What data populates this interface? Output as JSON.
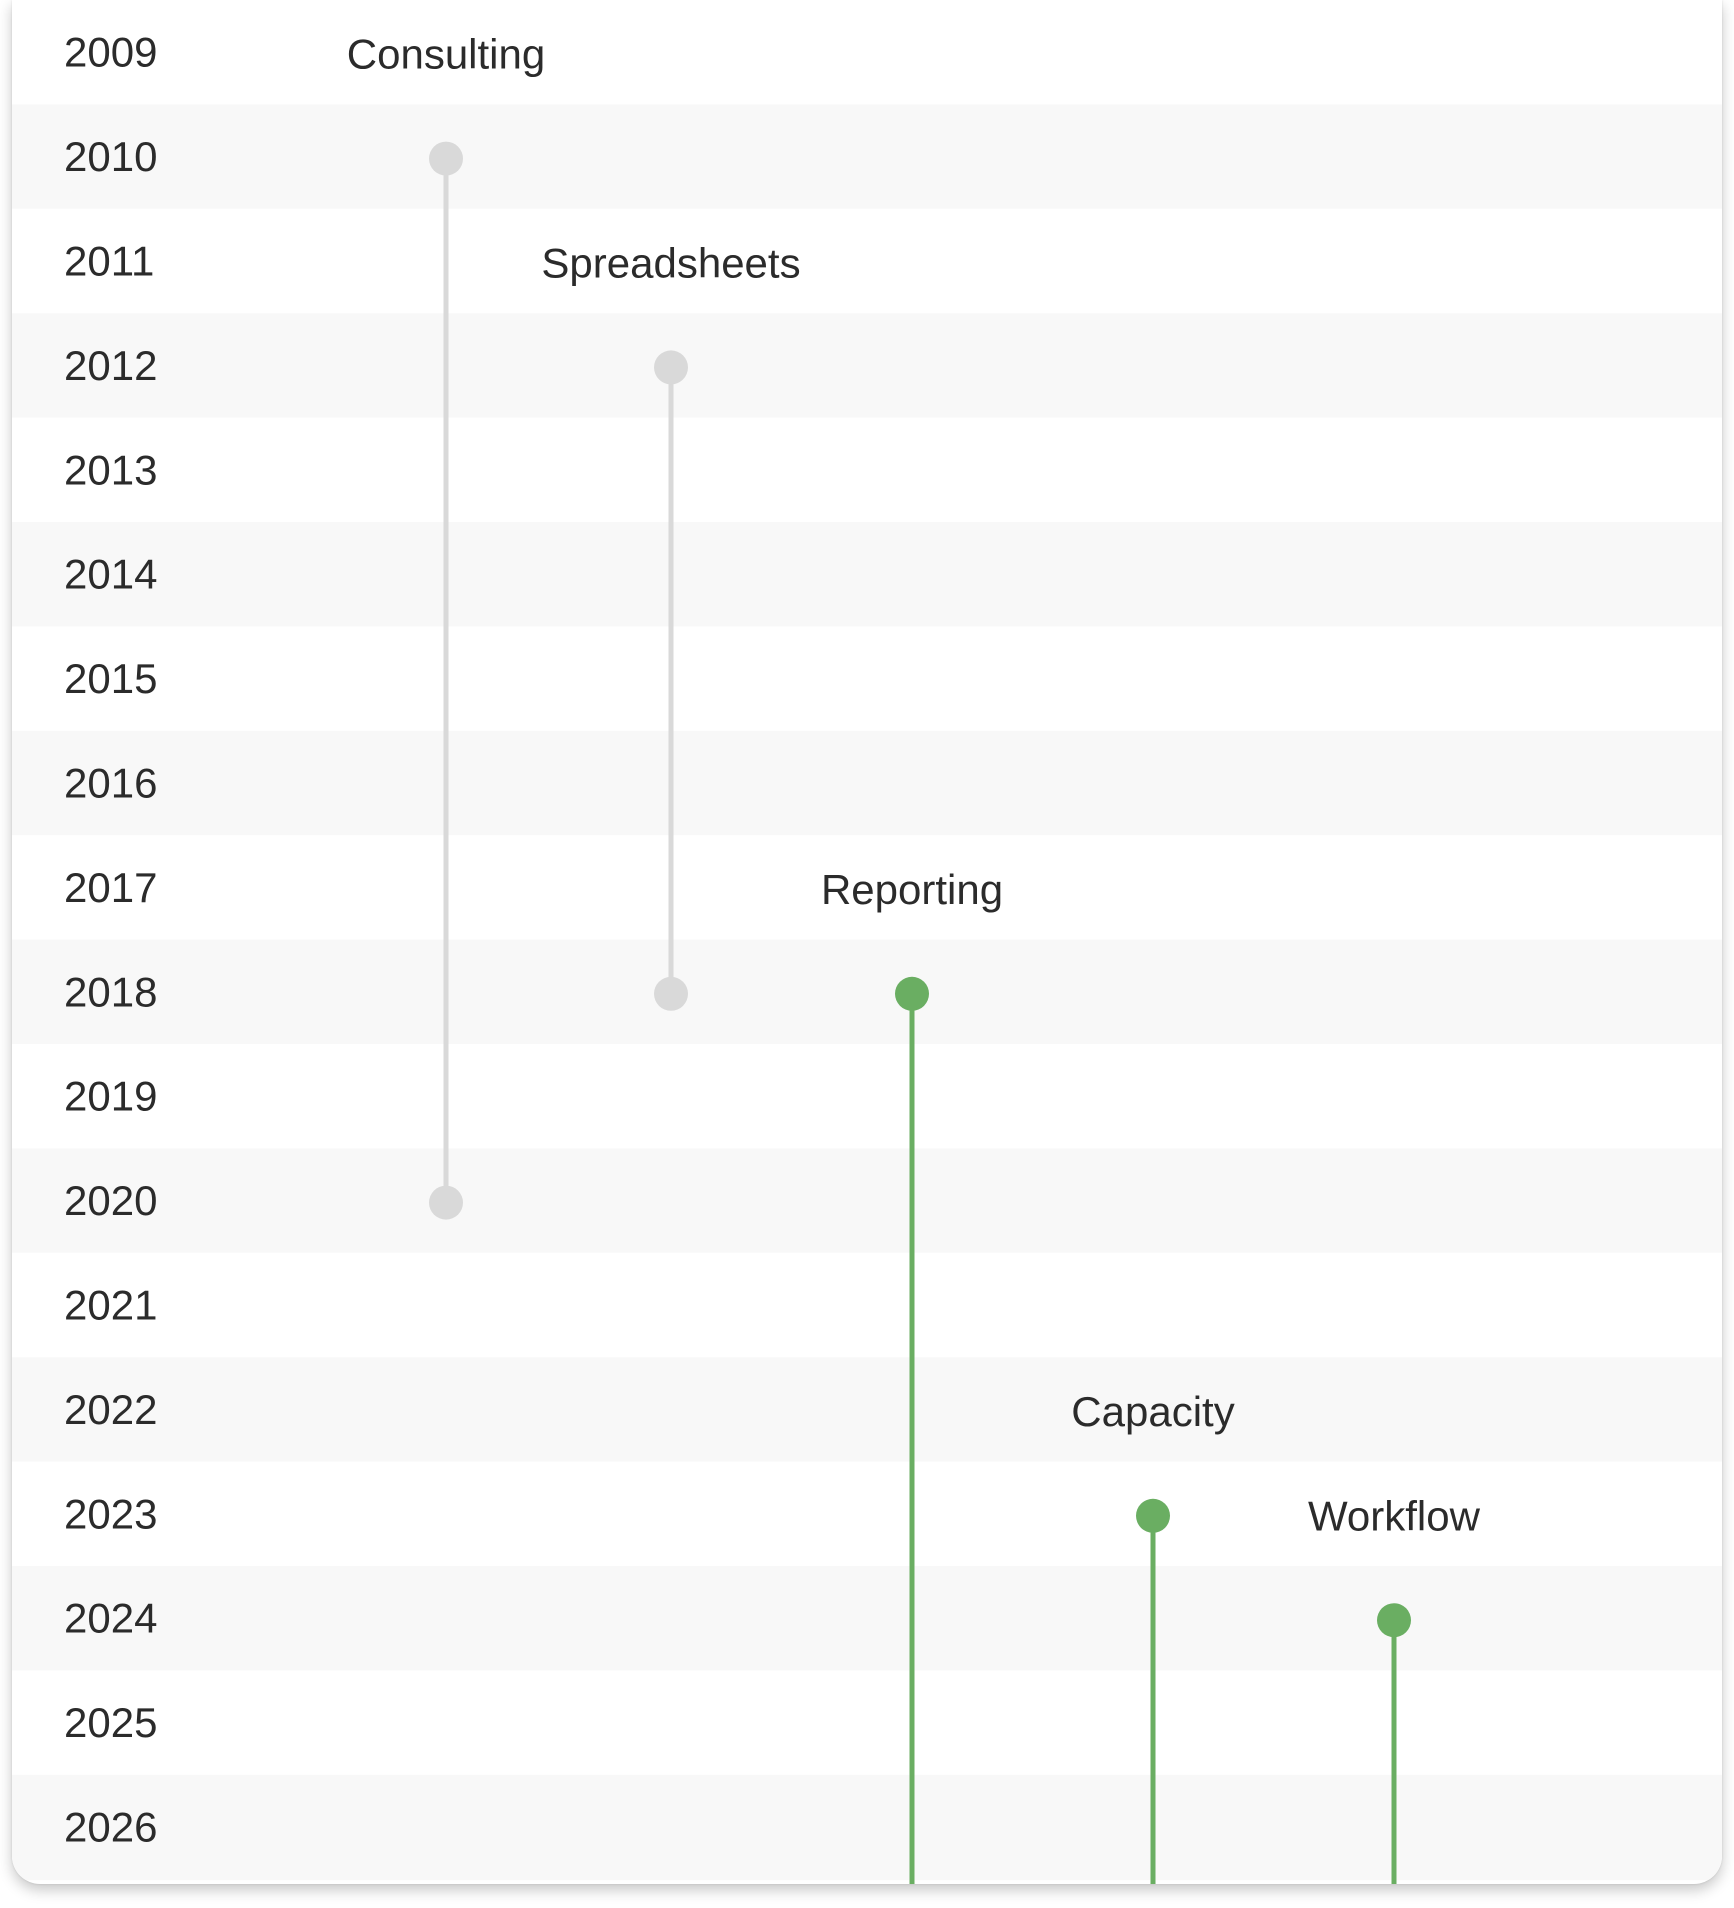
{
  "chart_data": {
    "type": "timeline",
    "title": "",
    "years": [
      "2009",
      "2010",
      "2011",
      "2012",
      "2013",
      "2014",
      "2015",
      "2016",
      "2017",
      "2018",
      "2019",
      "2020",
      "2021",
      "2022",
      "2023",
      "2024",
      "2025",
      "2026"
    ],
    "items": [
      {
        "name": "Consulting",
        "start": 2010,
        "end": 2020,
        "ongoing": false,
        "color": "#d9d9d9"
      },
      {
        "name": "Spreadsheets",
        "start": 2012,
        "end": 2018,
        "ongoing": false,
        "color": "#d9d9d9"
      },
      {
        "name": "Reporting",
        "start": 2018,
        "end": null,
        "ongoing": true,
        "color": "#6aae62"
      },
      {
        "name": "Capacity",
        "start": 2023,
        "end": null,
        "ongoing": true,
        "color": "#6aae62"
      },
      {
        "name": "Workflow",
        "start": 2024,
        "end": null,
        "ongoing": true,
        "color": "#6aae62"
      }
    ],
    "colors": {
      "past": "#d9d9d9",
      "current": "#6aae62",
      "row_alt": "#f8f8f8",
      "row": "#ffffff"
    }
  }
}
